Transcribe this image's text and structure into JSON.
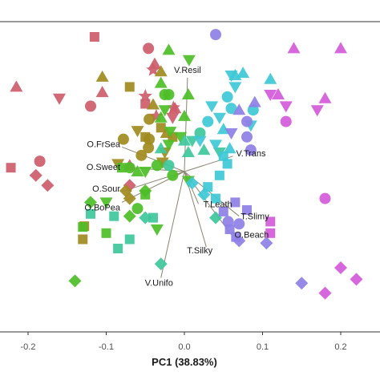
{
  "chart_data": {
    "type": "scatter",
    "title": "",
    "xlabel": "PC1 (38.83%)",
    "ylabel": "",
    "xlim": [
      -0.235,
      0.24
    ],
    "ylim": [
      -0.21,
      0.2
    ],
    "x_ticks": [
      -0.2,
      -0.1,
      0.0,
      0.1,
      0.2
    ],
    "x_tick_labels": [
      "-0.2",
      "-0.1",
      "0.0",
      "0.1",
      "0.2"
    ],
    "grid": false,
    "legend": "none",
    "vectors": [
      {
        "label": "V.Resil",
        "x": 0.004,
        "y": 0.122
      },
      {
        "label": "O.FrSea",
        "x": -0.08,
        "y": 0.032
      },
      {
        "label": "O.Sweet",
        "x": -0.08,
        "y": 0.006
      },
      {
        "label": "O.Sour",
        "x": -0.08,
        "y": -0.026
      },
      {
        "label": "O.BoPea",
        "x": -0.08,
        "y": -0.04
      },
      {
        "label": "V.Trans",
        "x": 0.062,
        "y": 0.02
      },
      {
        "label": "T.Leath",
        "x": 0.018,
        "y": -0.042
      },
      {
        "label": "T.Slimy",
        "x": 0.07,
        "y": -0.058
      },
      {
        "label": "O.Beach",
        "x": 0.06,
        "y": -0.082
      },
      {
        "label": "T.Silky",
        "x": 0.028,
        "y": -0.098
      },
      {
        "label": "V.Unifo",
        "x": -0.03,
        "y": -0.138
      }
    ],
    "colors": {
      "red": "#cd5c6a",
      "olive": "#a08a1e",
      "green": "#4dbe27",
      "teal": "#3ec79a",
      "cyan": "#3ec8d6",
      "blue": "#8d7fe6",
      "magenta": "#d35ad9"
    },
    "series": [
      {
        "group": "red",
        "shape": "square",
        "points": [
          [
            -0.115,
            0.175
          ],
          [
            -0.222,
            0.005
          ],
          [
            -0.05,
            0.088
          ]
        ]
      },
      {
        "group": "red",
        "shape": "circle",
        "points": [
          [
            -0.046,
            0.16
          ],
          [
            -0.185,
            0.0134
          ],
          [
            -0.12,
            0.085
          ]
        ]
      },
      {
        "group": "red",
        "shape": "triangle",
        "points": [
          [
            -0.215,
            0.11
          ],
          [
            -0.105,
            0.103
          ],
          [
            -0.038,
            0.14
          ],
          [
            -0.07,
            0.008
          ],
          [
            -0.012,
            0.082
          ]
        ]
      },
      {
        "group": "red",
        "shape": "tridown",
        "points": [
          [
            -0.16,
            0.095
          ],
          [
            -0.015,
            0.07
          ]
        ]
      },
      {
        "group": "red",
        "shape": "diamond",
        "points": [
          [
            -0.19,
            -0.005
          ],
          [
            -0.175,
            -0.018
          ],
          [
            -0.07,
            -0.018
          ]
        ]
      },
      {
        "group": "red",
        "shape": "star",
        "points": [
          [
            -0.04,
            0.132
          ],
          [
            -0.014,
            0.083
          ],
          [
            -0.036,
            0.072
          ],
          [
            -0.05,
            0.098
          ]
        ]
      },
      {
        "group": "olive",
        "shape": "triangle",
        "points": [
          [
            -0.105,
            0.123
          ],
          [
            -0.03,
            0.13
          ],
          [
            -0.04,
            0.087
          ],
          [
            -0.023,
            0.05
          ]
        ]
      },
      {
        "group": "olive",
        "shape": "square",
        "points": [
          [
            -0.07,
            0.11
          ],
          [
            -0.03,
            0.057
          ],
          [
            -0.015,
            0.045
          ],
          [
            -0.128,
            -0.071
          ],
          [
            -0.13,
            -0.088
          ],
          [
            -0.05,
            0.045
          ]
        ]
      },
      {
        "group": "olive",
        "shape": "circle",
        "points": [
          [
            -0.045,
            0.068
          ],
          [
            -0.045,
            0.042
          ],
          [
            -0.046,
            0.031
          ],
          [
            -0.055,
            0.021
          ],
          [
            -0.078,
            0.042
          ]
        ]
      },
      {
        "group": "olive",
        "shape": "tridown",
        "points": [
          [
            -0.025,
            0.025
          ],
          [
            -0.085,
            0.01
          ],
          [
            -0.028,
            0.012
          ],
          [
            -0.06,
            0.053
          ]
        ]
      },
      {
        "group": "olive",
        "shape": "diamond",
        "points": [
          [
            -0.075,
            -0.025
          ],
          [
            -0.07,
            -0.035
          ]
        ]
      },
      {
        "group": "green",
        "shape": "triangle",
        "points": [
          [
            -0.02,
            0.158
          ],
          [
            -0.03,
            0.115
          ],
          [
            0.005,
            0.1
          ],
          [
            -0.03,
            0.07
          ],
          [
            0.0,
            0.072
          ],
          [
            -0.06,
            0.0
          ]
        ]
      },
      {
        "group": "green",
        "shape": "tridown",
        "points": [
          [
            0.006,
            0.145
          ],
          [
            -0.025,
            0.08
          ],
          [
            -0.02,
            0.035
          ],
          [
            -0.018,
            0.052
          ],
          [
            0.005,
            -0.012
          ],
          [
            -0.005,
            0.045
          ],
          [
            -0.05,
            0.0
          ]
        ]
      },
      {
        "group": "green",
        "shape": "circle",
        "points": [
          [
            -0.02,
            0.1
          ],
          [
            -0.025,
            0.1
          ],
          [
            -0.015,
            -0.005
          ],
          [
            -0.06,
            -0.048
          ],
          [
            -0.07,
            0.005
          ],
          [
            -0.035,
            0.008
          ]
        ]
      },
      {
        "group": "green",
        "shape": "square",
        "points": [
          [
            -0.08,
            0.005
          ],
          [
            -0.13,
            -0.072
          ],
          [
            -0.05,
            -0.03
          ],
          [
            -0.1,
            -0.08
          ]
        ]
      },
      {
        "group": "green",
        "shape": "diamond",
        "points": [
          [
            -0.07,
            -0.058
          ],
          [
            -0.14,
            -0.142
          ],
          [
            -0.12,
            -0.04
          ],
          [
            -0.05,
            -0.025
          ]
        ]
      },
      {
        "group": "green",
        "shape": "tridown",
        "points": [
          [
            -0.1,
            -0.04
          ],
          [
            -0.035,
            -0.075
          ]
        ]
      },
      {
        "group": "teal",
        "shape": "square",
        "points": [
          [
            -0.12,
            -0.055
          ],
          [
            -0.09,
            -0.058
          ],
          [
            -0.07,
            -0.088
          ],
          [
            -0.085,
            -0.1
          ],
          [
            -0.04,
            -0.06
          ]
        ]
      },
      {
        "group": "teal",
        "shape": "diamond",
        "points": [
          [
            -0.05,
            -0.06
          ],
          [
            -0.03,
            -0.12
          ],
          [
            0.04,
            -0.06
          ]
        ]
      },
      {
        "group": "teal",
        "shape": "triangle",
        "points": [
          [
            0.0,
            0.04
          ],
          [
            0.005,
            0.025
          ],
          [
            0.025,
            0.028
          ],
          [
            -0.03,
            0.03
          ]
        ]
      },
      {
        "group": "teal",
        "shape": "circle",
        "points": [
          [
            0.02,
            0.05
          ],
          [
            -0.02,
            0.008
          ]
        ]
      },
      {
        "group": "teal",
        "shape": "tridown",
        "points": [
          [
            0.01,
            0.04
          ],
          [
            0.045,
            0.025
          ]
        ]
      },
      {
        "group": "cyan",
        "shape": "triangle",
        "points": [
          [
            0.065,
            0.125
          ],
          [
            0.075,
            0.128
          ],
          [
            0.11,
            0.12
          ],
          [
            0.05,
            0.055
          ],
          [
            0.058,
            0.03
          ]
        ]
      },
      {
        "group": "cyan",
        "shape": "tridown",
        "points": [
          [
            0.06,
            0.125
          ],
          [
            0.065,
            0.11
          ],
          [
            0.035,
            0.085
          ],
          [
            0.045,
            0.07
          ],
          [
            0.02,
            0.04
          ],
          [
            0.04,
            0.035
          ],
          [
            0.085,
            0.06
          ]
        ]
      },
      {
        "group": "cyan",
        "shape": "circle",
        "points": [
          [
            0.055,
            0.097
          ],
          [
            0.06,
            0.082
          ],
          [
            0.03,
            0.065
          ],
          [
            0.088,
            0.08
          ]
        ]
      },
      {
        "group": "cyan",
        "shape": "square",
        "points": [
          [
            0.05,
            0.02
          ],
          [
            0.055,
            0.01
          ],
          [
            0.045,
            -0.005
          ],
          [
            0.03,
            -0.02
          ],
          [
            0.04,
            -0.035
          ]
        ]
      },
      {
        "group": "cyan",
        "shape": "diamond",
        "points": [
          [
            0.01,
            -0.015
          ],
          [
            0.025,
            -0.03
          ]
        ]
      },
      {
        "group": "blue",
        "shape": "circle",
        "points": [
          [
            0.04,
            0.178
          ],
          [
            0.08,
            0.065
          ],
          [
            0.08,
            0.045
          ],
          [
            0.085,
            0.028
          ],
          [
            0.056,
            -0.065
          ],
          [
            0.07,
            -0.068
          ]
        ]
      },
      {
        "group": "blue",
        "shape": "square",
        "points": [
          [
            0.065,
            -0.04
          ],
          [
            0.05,
            -0.052
          ],
          [
            0.08,
            -0.05
          ],
          [
            0.058,
            -0.075
          ],
          [
            0.066,
            -0.085
          ]
        ]
      },
      {
        "group": "blue",
        "shape": "diamond",
        "points": [
          [
            0.07,
            -0.09
          ],
          [
            0.105,
            -0.093
          ],
          [
            0.15,
            -0.145
          ]
        ]
      },
      {
        "group": "blue",
        "shape": "triangle",
        "points": [
          [
            0.07,
            0.08
          ],
          [
            0.09,
            0.09
          ]
        ]
      },
      {
        "group": "blue",
        "shape": "tridown",
        "points": [
          [
            0.06,
            0.05
          ]
        ]
      },
      {
        "group": "magenta",
        "shape": "triangle",
        "points": [
          [
            0.14,
            0.16
          ],
          [
            0.2,
            0.16
          ],
          [
            0.18,
            0.095
          ],
          [
            0.12,
            0.1
          ]
        ]
      },
      {
        "group": "magenta",
        "shape": "tridown",
        "points": [
          [
            0.11,
            0.1
          ],
          [
            0.13,
            0.085
          ],
          [
            0.17,
            0.08
          ]
        ]
      },
      {
        "group": "magenta",
        "shape": "circle",
        "points": [
          [
            0.13,
            0.065
          ],
          [
            0.18,
            -0.035
          ]
        ]
      },
      {
        "group": "magenta",
        "shape": "square",
        "points": [
          [
            0.11,
            -0.065
          ],
          [
            0.11,
            -0.08
          ]
        ]
      },
      {
        "group": "magenta",
        "shape": "diamond",
        "points": [
          [
            0.2,
            -0.125
          ],
          [
            0.22,
            -0.14
          ],
          [
            0.18,
            -0.158
          ]
        ]
      }
    ]
  }
}
